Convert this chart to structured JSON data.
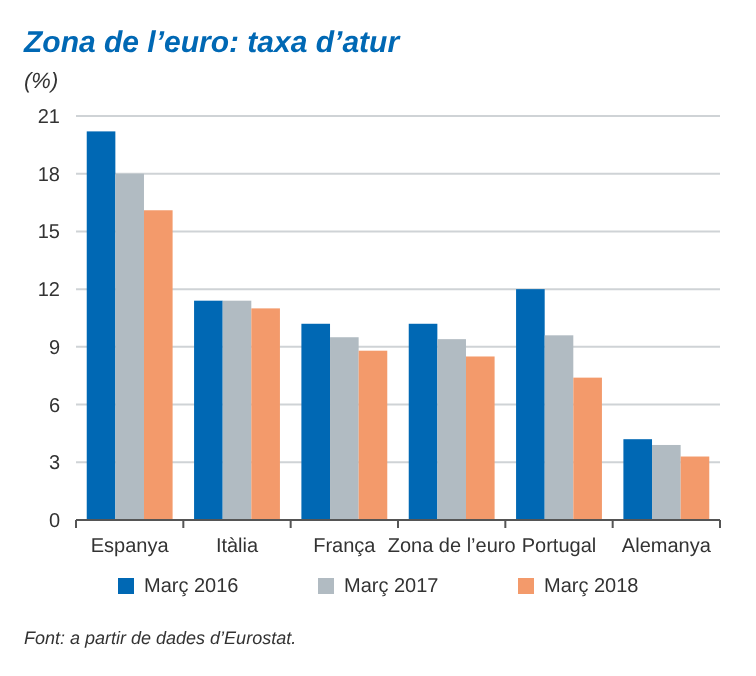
{
  "chart_data": {
    "type": "bar",
    "title": "Zona de l’euro: taxa d’atur",
    "ylabel": "(%)",
    "categories": [
      "Espanya",
      "Itàlia",
      "França",
      "Zona de l’euro",
      "Portugal",
      "Alemanya"
    ],
    "series": [
      {
        "name": "Març 2016",
        "color": "#0068b4",
        "values": [
          20.2,
          11.4,
          10.2,
          10.2,
          12.0,
          4.2
        ]
      },
      {
        "name": "Març 2017",
        "color": "#b1bbc2",
        "values": [
          18.0,
          11.4,
          9.5,
          9.4,
          9.6,
          3.9
        ]
      },
      {
        "name": "Març 2018",
        "color": "#f39a6b",
        "values": [
          16.1,
          11.0,
          8.8,
          8.5,
          7.4,
          3.3
        ]
      }
    ],
    "ylim": [
      0,
      21
    ],
    "yticks": [
      0,
      3,
      6,
      9,
      12,
      15,
      18,
      21
    ],
    "grid": "y",
    "legend": "bottom",
    "annotations": [
      "Font: a partir de dades d’Eurostat."
    ]
  }
}
